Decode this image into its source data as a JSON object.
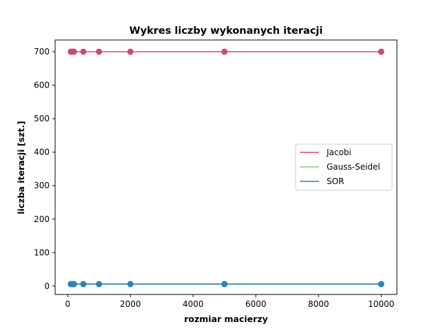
{
  "chart_data": {
    "type": "line",
    "title": "Wykres liczby wykonanych iteracji",
    "xlabel": "rozmiar macierzy",
    "ylabel": "liczba iteracji [szt.]",
    "xlim": [
      -400,
      10500
    ],
    "ylim": [
      -25,
      735
    ],
    "x_ticks": [
      0,
      2000,
      4000,
      6000,
      8000,
      10000
    ],
    "y_ticks": [
      0,
      100,
      200,
      300,
      400,
      500,
      600,
      700
    ],
    "legend_position": "center-right",
    "grid": false,
    "series": [
      {
        "name": "Jacobi",
        "color": "#d1496b",
        "x": [
          100,
          150,
          200,
          500,
          1000,
          2000,
          5000,
          10000
        ],
        "y": [
          700,
          700,
          700,
          700,
          700,
          700,
          700,
          700
        ]
      },
      {
        "name": "Gauss-Seidel",
        "color": "#7fc97f",
        "x": [
          100,
          150,
          200,
          500,
          1000,
          2000,
          5000,
          10000
        ],
        "y": [
          6,
          6,
          6,
          6,
          6,
          6,
          6,
          6
        ]
      },
      {
        "name": "SOR",
        "color": "#2b83ba",
        "x": [
          100,
          150,
          200,
          500,
          1000,
          2000,
          5000,
          10000
        ],
        "y": [
          6,
          6,
          6,
          6,
          6,
          6,
          6,
          6
        ]
      }
    ]
  }
}
